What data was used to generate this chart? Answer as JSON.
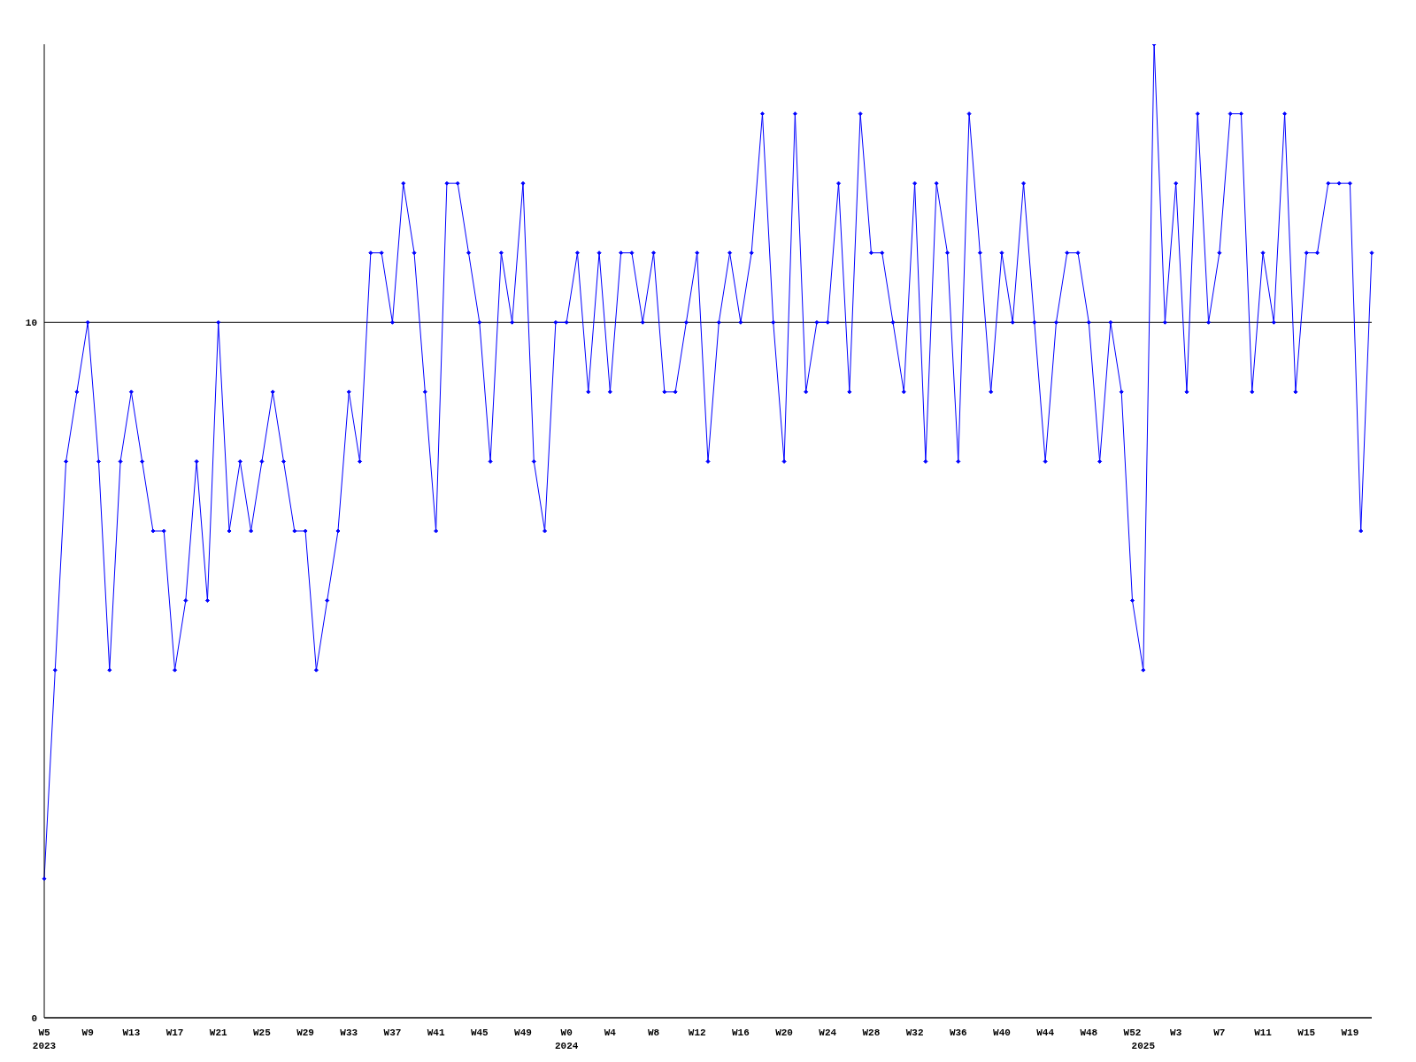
{
  "chart_data": {
    "type": "line",
    "categories": [
      "W5\n2023",
      null,
      null,
      null,
      "W9",
      null,
      null,
      null,
      "W13",
      null,
      null,
      null,
      "W17",
      null,
      null,
      null,
      "W21",
      null,
      null,
      null,
      "W25",
      null,
      null,
      null,
      "W29",
      null,
      null,
      null,
      "W33",
      null,
      null,
      null,
      "W37",
      null,
      null,
      null,
      "W41",
      null,
      null,
      null,
      "W45",
      null,
      null,
      null,
      "W49",
      null,
      null,
      null,
      "W0\n2024",
      null,
      null,
      null,
      "W4",
      null,
      null,
      null,
      "W8",
      null,
      null,
      null,
      "W12",
      null,
      null,
      null,
      "W16",
      null,
      null,
      null,
      "W20",
      null,
      null,
      null,
      "W24",
      null,
      null,
      null,
      "W28",
      null,
      null,
      null,
      "W32",
      null,
      null,
      null,
      "W36",
      null,
      null,
      null,
      "W40",
      null,
      null,
      null,
      "W44",
      null,
      null,
      null,
      "W48",
      null,
      null,
      null,
      "W52",
      "\n2025",
      null,
      null,
      "W3",
      null,
      null,
      null,
      "W7",
      null,
      null,
      null,
      "W11",
      null,
      null,
      null,
      "W15",
      null,
      null,
      null,
      "W19",
      null,
      null
    ],
    "series": [
      {
        "color": "#0000ff",
        "values": [
          2,
          5,
          8,
          9,
          10,
          8,
          5,
          8,
          9,
          8,
          7,
          7,
          5,
          6,
          8,
          6,
          10,
          7,
          8,
          7,
          8,
          9,
          8,
          7,
          7,
          5,
          6,
          7,
          9,
          8,
          11,
          11,
          10,
          12,
          11,
          9,
          7,
          12,
          12,
          11,
          10,
          8,
          11,
          10,
          12,
          8,
          7,
          10,
          10,
          11,
          9,
          11,
          9,
          11,
          11,
          10,
          11,
          9,
          9,
          10,
          11,
          8,
          10,
          11,
          10,
          11,
          13,
          10,
          8,
          13,
          9,
          10,
          10,
          12,
          9,
          13,
          11,
          11,
          10,
          9,
          12,
          8,
          12,
          11,
          8,
          13,
          11,
          9,
          11,
          10,
          12,
          10,
          8,
          10,
          11,
          11,
          10,
          8,
          10,
          9,
          6,
          5,
          14,
          10,
          12,
          9,
          13,
          10,
          11,
          13,
          13,
          9,
          11,
          10,
          13,
          9,
          11,
          11,
          12,
          12,
          12,
          7,
          11
        ]
      }
    ],
    "ylim": [
      0,
      14
    ],
    "yticks": [
      0,
      10
    ],
    "grid": "y",
    "marker": "diamond",
    "line_style": "solid"
  }
}
